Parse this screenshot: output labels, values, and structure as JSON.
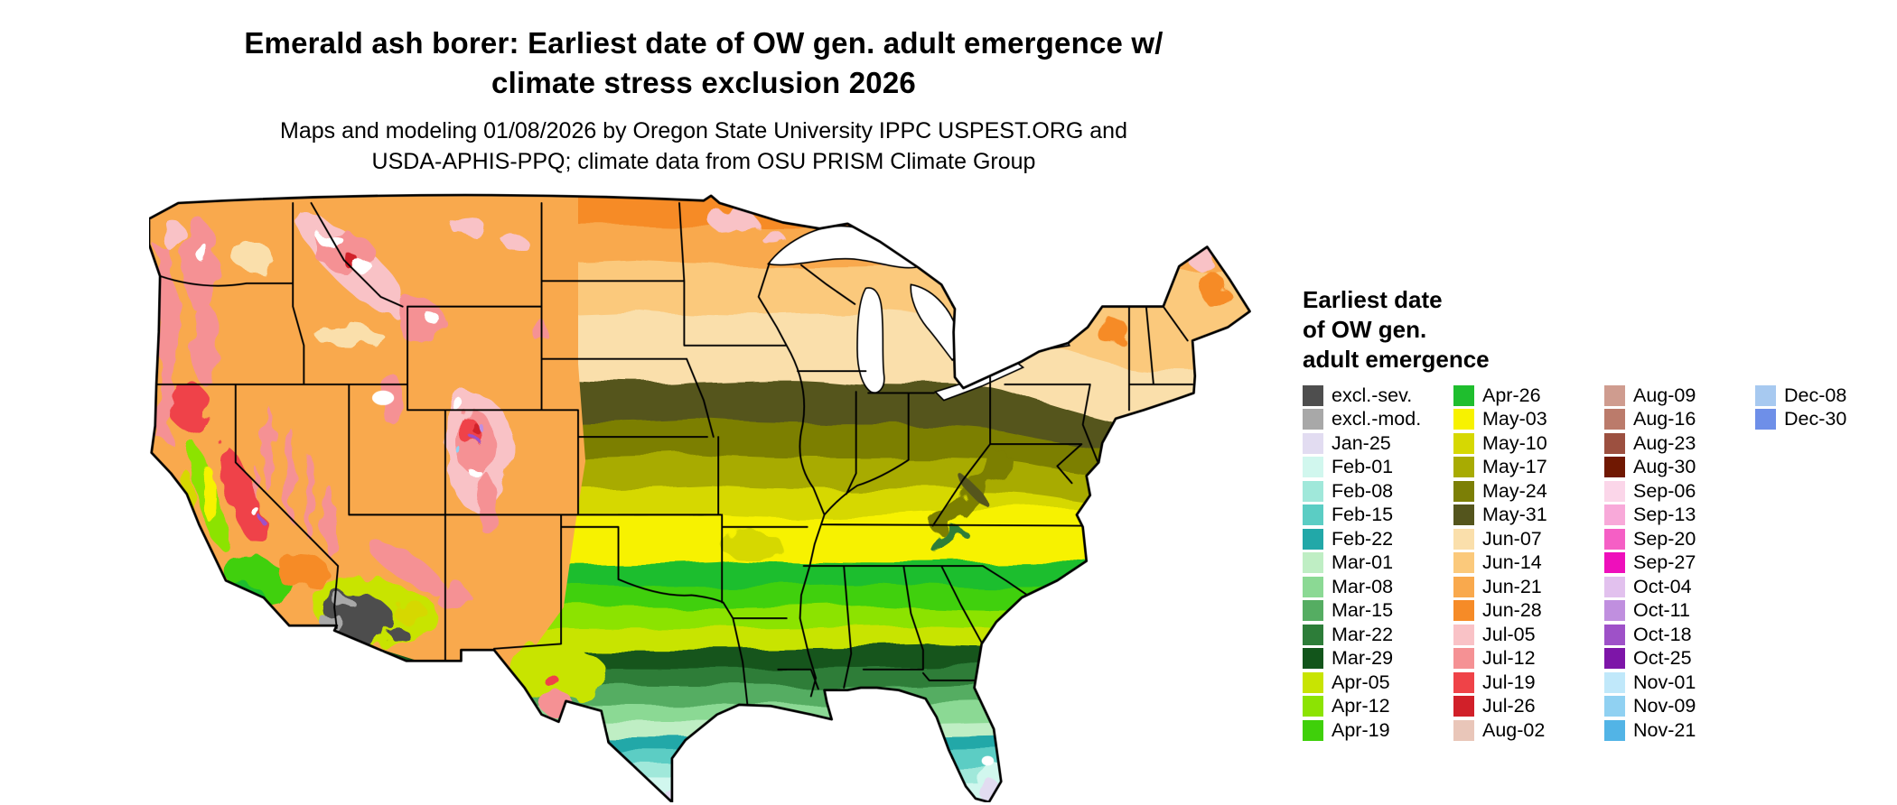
{
  "page": {
    "title_lines": [
      "Emerald ash borer: Earliest date of OW gen. adult emergence w/",
      "climate stress exclusion 2026"
    ],
    "subtitle_lines": [
      "Maps and modeling 01/08/2026 by Oregon State University IPPC USPEST.ORG and",
      "USDA-APHIS-PPQ; climate data from OSU PRISM Climate Group"
    ]
  },
  "palette": {
    "excl-sev": "#4e4e4e",
    "excl-mod": "#a8a8a8",
    "jan-25": "#e2dcf1",
    "feb-01": "#d1f7ee",
    "feb-08": "#a0e8da",
    "feb-15": "#5bcdc4",
    "feb-22": "#22a8a8",
    "mar-01": "#bfeec4",
    "mar-08": "#8bd994",
    "mar-15": "#55ad62",
    "mar-22": "#2d7d39",
    "mar-29": "#12551b",
    "apr-05": "#c8e402",
    "apr-12": "#8ce303",
    "apr-19": "#3fd00a",
    "apr-26": "#1fbe2e",
    "may-03": "#f7f200",
    "may-10": "#d6d802",
    "may-17": "#a8ab02",
    "may-24": "#7c7f06",
    "may-31": "#54551d",
    "jun-07": "#fadfab",
    "jun-14": "#fbc97b",
    "jun-21": "#f9a94d",
    "jun-28": "#f68b27",
    "jul-05": "#f9c2c6",
    "jul-12": "#f59194",
    "jul-19": "#ef4348",
    "jul-26": "#d12029",
    "aug-02": "#e9c6b9",
    "aug-09": "#cf9c8f",
    "aug-16": "#bb7b6b",
    "aug-23": "#9c5040",
    "aug-30": "#701802",
    "sep-06": "#fbd6e9",
    "sep-13": "#f8a9d9",
    "sep-20": "#f55fc5",
    "sep-27": "#ee0fbb",
    "oct-04": "#e2c1ee",
    "oct-11": "#c08fdf",
    "oct-18": "#9e51c8",
    "oct-25": "#7d15a8",
    "nov-01": "#c0e8fa",
    "nov-09": "#90d1f2",
    "nov-21": "#52b4e6",
    "dec-08": "#a7c9f0",
    "dec-30": "#6e8fe8",
    "white": "#ffffff"
  },
  "legend": {
    "title_lines": [
      "Earliest date",
      "of OW gen.",
      "adult emergence"
    ],
    "columns": [
      [
        {
          "label": "excl.-sev.",
          "color_key": "excl-sev"
        },
        {
          "label": "excl.-mod.",
          "color_key": "excl-mod"
        },
        {
          "label": "Jan-25",
          "color_key": "jan-25"
        },
        {
          "label": "Feb-01",
          "color_key": "feb-01"
        },
        {
          "label": "Feb-08",
          "color_key": "feb-08"
        },
        {
          "label": "Feb-15",
          "color_key": "feb-15"
        },
        {
          "label": "Feb-22",
          "color_key": "feb-22"
        },
        {
          "label": "Mar-01",
          "color_key": "mar-01"
        },
        {
          "label": "Mar-08",
          "color_key": "mar-08"
        },
        {
          "label": "Mar-15",
          "color_key": "mar-15"
        },
        {
          "label": "Mar-22",
          "color_key": "mar-22"
        },
        {
          "label": "Mar-29",
          "color_key": "mar-29"
        },
        {
          "label": "Apr-05",
          "color_key": "apr-05"
        },
        {
          "label": "Apr-12",
          "color_key": "apr-12"
        },
        {
          "label": "Apr-19",
          "color_key": "apr-19"
        }
      ],
      [
        {
          "label": "Apr-26",
          "color_key": "apr-26"
        },
        {
          "label": "May-03",
          "color_key": "may-03"
        },
        {
          "label": "May-10",
          "color_key": "may-10"
        },
        {
          "label": "May-17",
          "color_key": "may-17"
        },
        {
          "label": "May-24",
          "color_key": "may-24"
        },
        {
          "label": "May-31",
          "color_key": "may-31"
        },
        {
          "label": "Jun-07",
          "color_key": "jun-07"
        },
        {
          "label": "Jun-14",
          "color_key": "jun-14"
        },
        {
          "label": "Jun-21",
          "color_key": "jun-21"
        },
        {
          "label": "Jun-28",
          "color_key": "jun-28"
        },
        {
          "label": "Jul-05",
          "color_key": "jul-05"
        },
        {
          "label": "Jul-12",
          "color_key": "jul-12"
        },
        {
          "label": "Jul-19",
          "color_key": "jul-19"
        },
        {
          "label": "Jul-26",
          "color_key": "jul-26"
        },
        {
          "label": "Aug-02",
          "color_key": "aug-02"
        }
      ],
      [
        {
          "label": "Aug-09",
          "color_key": "aug-09"
        },
        {
          "label": "Aug-16",
          "color_key": "aug-16"
        },
        {
          "label": "Aug-23",
          "color_key": "aug-23"
        },
        {
          "label": "Aug-30",
          "color_key": "aug-30"
        },
        {
          "label": "Sep-06",
          "color_key": "sep-06"
        },
        {
          "label": "Sep-13",
          "color_key": "sep-13"
        },
        {
          "label": "Sep-20",
          "color_key": "sep-20"
        },
        {
          "label": "Sep-27",
          "color_key": "sep-27"
        },
        {
          "label": "Oct-04",
          "color_key": "oct-04"
        },
        {
          "label": "Oct-11",
          "color_key": "oct-11"
        },
        {
          "label": "Oct-18",
          "color_key": "oct-18"
        },
        {
          "label": "Oct-25",
          "color_key": "oct-25"
        },
        {
          "label": "Nov-01",
          "color_key": "nov-01"
        },
        {
          "label": "Nov-09",
          "color_key": "nov-09"
        },
        {
          "label": "Nov-21",
          "color_key": "nov-21"
        }
      ],
      [
        {
          "label": "Dec-08",
          "color_key": "dec-08"
        },
        {
          "label": "Dec-30",
          "color_key": "dec-30"
        }
      ]
    ]
  }
}
